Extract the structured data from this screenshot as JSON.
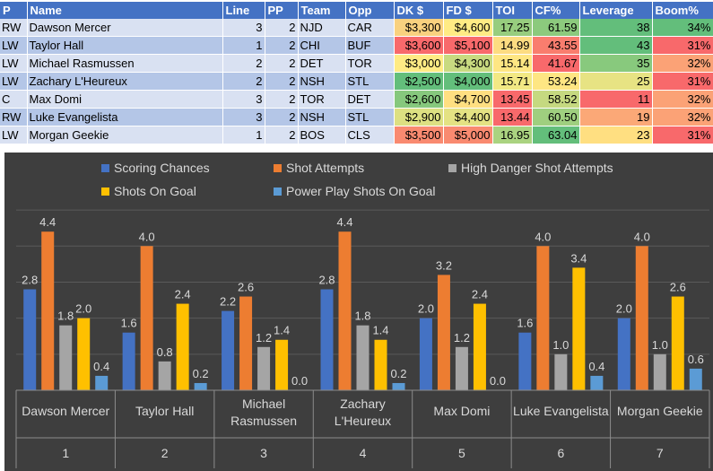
{
  "table": {
    "headers": [
      "P",
      "Name",
      "Line",
      "PP",
      "Team",
      "Opp",
      "DK $",
      "FD $",
      "TOI",
      "CF%",
      "Leverage",
      "Boom%"
    ],
    "rows": [
      {
        "p": "RW",
        "name": "Dawson Mercer",
        "line": "3",
        "pp": "2",
        "team": "NJD",
        "opp": "CAR",
        "dk": "$3,300",
        "fd": "$4,600",
        "toi": "17.25",
        "cf": "61.59",
        "lev": "38",
        "boom": "34%",
        "colors": {
          "dk": "#f9d17f",
          "fd": "#ffeb84",
          "toi": "#97cd7e",
          "cf": "#8cca7d",
          "lev": "#63be7b",
          "boom": "#63be7b"
        }
      },
      {
        "p": "LW",
        "name": "Taylor Hall",
        "line": "1",
        "pp": "2",
        "team": "CHI",
        "opp": "BUF",
        "dk": "$3,600",
        "fd": "$5,100",
        "toi": "14.99",
        "cf": "43.55",
        "lev": "43",
        "boom": "31%",
        "colors": {
          "dk": "#f8696b",
          "fd": "#f8696b",
          "toi": "#fddc81",
          "cf": "#f97d6e",
          "lev": "#63be7b",
          "boom": "#f8696b"
        }
      },
      {
        "p": "LW",
        "name": "Michael Rasmussen",
        "line": "2",
        "pp": "2",
        "team": "DET",
        "opp": "TOR",
        "dk": "$3,000",
        "fd": "$4,300",
        "toi": "15.14",
        "cf": "41.67",
        "lev": "35",
        "boom": "32%",
        "colors": {
          "dk": "#ffeb84",
          "fd": "#c8da80",
          "toi": "#fee683",
          "cf": "#f8696b",
          "lev": "#88c97d",
          "boom": "#fba276"
        }
      },
      {
        "p": "LW",
        "name": "Zachary L'Heureux",
        "line": "2",
        "pp": "2",
        "team": "NSH",
        "opp": "STL",
        "dk": "$2,500",
        "dk_note": "",
        "fd": "$4,000",
        "toi": "15.71",
        "cf": "53.24",
        "lev": "25",
        "boom": "31%",
        "colors": {
          "dk": "#63be7b",
          "fd": "#63be7b",
          "toi": "#f2e884",
          "cf": "#fee683",
          "lev": "#e7e383",
          "boom": "#f8696b"
        }
      },
      {
        "p": "C",
        "name": "Max Domi",
        "line": "3",
        "pp": "2",
        "team": "TOR",
        "opp": "DET",
        "dk": "$2,600",
        "fd": "$4,700",
        "toi": "13.45",
        "cf": "58.52",
        "lev": "11",
        "boom": "32%",
        "colors": {
          "dk": "#86c87d",
          "fd": "#ffdf81",
          "toi": "#f8696b",
          "cf": "#c5d980",
          "lev": "#f8696b",
          "boom": "#fba276"
        }
      },
      {
        "p": "RW",
        "name": "Luke Evangelista",
        "line": "3",
        "pp": "2",
        "team": "NSH",
        "opp": "STL",
        "dk": "$2,900",
        "fd": "$4,400",
        "toi": "13.44",
        "cf": "60.50",
        "lev": "19",
        "boom": "32%",
        "colors": {
          "dk": "#dde082",
          "fd": "#e4e283",
          "toi": "#f8696b",
          "cf": "#9fcf7f",
          "lev": "#fba877",
          "boom": "#fba276"
        }
      },
      {
        "p": "LW",
        "name": "Morgan Geekie",
        "line": "1",
        "pp": "2",
        "team": "BOS",
        "opp": "CLS",
        "dk": "$3,500",
        "fd": "$5,000",
        "toi": "16.95",
        "cf": "63.04",
        "lev": "23",
        "boom": "31%",
        "colors": {
          "dk": "#f98a70",
          "fd": "#f98a70",
          "toi": "#aad380",
          "cf": "#63be7b",
          "lev": "#ffdf81",
          "boom": "#f8696b"
        }
      }
    ]
  },
  "chart_data": {
    "type": "bar",
    "legend": [
      {
        "name": "Scoring Chances",
        "color": "#4472c4"
      },
      {
        "name": "Shot Attempts",
        "color": "#ed7d31"
      },
      {
        "name": "High Danger Shot Attempts",
        "color": "#a5a5a5"
      },
      {
        "name": "Shots On Goal",
        "color": "#ffc000"
      },
      {
        "name": "Power Play Shots On Goal",
        "color": "#5b9bd5"
      }
    ],
    "categories": [
      "Dawson Mercer",
      "Taylor Hall",
      "Michael Rasmussen",
      "Zachary L'Heureux",
      "Max Domi",
      "Luke Evangelista",
      "Morgan Geekie"
    ],
    "category_display": [
      [
        "Dawson Mercer"
      ],
      [
        "Taylor Hall"
      ],
      [
        "Michael",
        "Rasmussen"
      ],
      [
        "Zachary",
        "L'Heureux"
      ],
      [
        "Max Domi"
      ],
      [
        "Luke Evangelista"
      ],
      [
        "Morgan Geekie"
      ]
    ],
    "group_labels": [
      "1",
      "2",
      "3",
      "4",
      "5",
      "6",
      "7"
    ],
    "series": [
      {
        "name": "Scoring Chances",
        "values": [
          2.8,
          1.6,
          2.2,
          2.8,
          2.0,
          1.6,
          2.0
        ]
      },
      {
        "name": "Shot Attempts",
        "values": [
          4.4,
          4.0,
          2.6,
          4.4,
          3.2,
          4.0,
          4.0
        ]
      },
      {
        "name": "High Danger Shot Attempts",
        "values": [
          1.8,
          0.8,
          1.2,
          1.8,
          1.2,
          1.0,
          1.0
        ]
      },
      {
        "name": "Shots On Goal",
        "values": [
          2.0,
          2.4,
          1.4,
          1.4,
          2.4,
          3.4,
          2.6
        ]
      },
      {
        "name": "Power Play Shots On Goal",
        "values": [
          0.4,
          0.2,
          0.0,
          0.2,
          0.0,
          0.4,
          0.6
        ]
      }
    ],
    "ylim": [
      0,
      5
    ],
    "grid": true
  }
}
